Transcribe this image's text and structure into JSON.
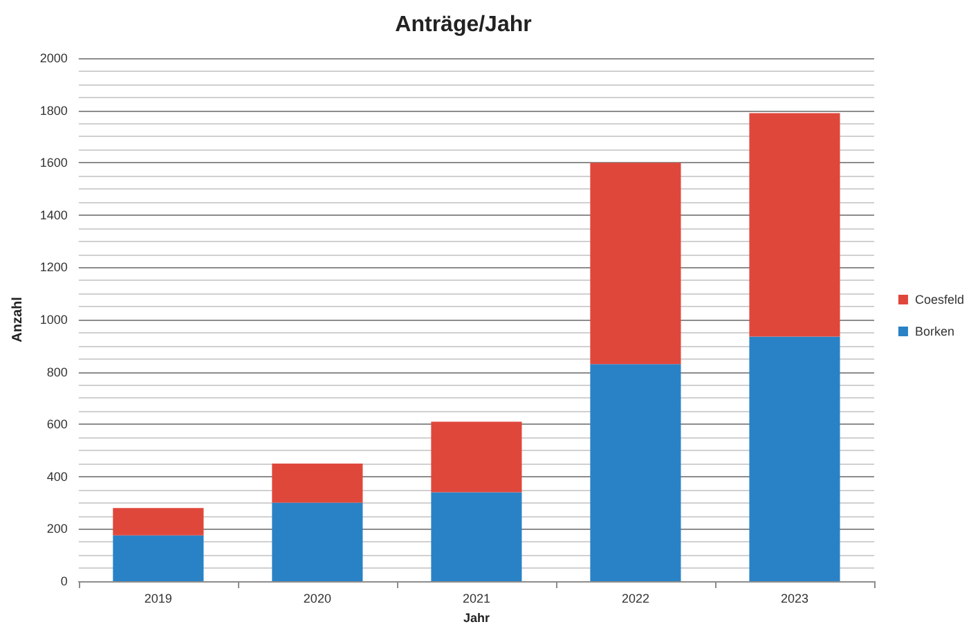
{
  "chart_data": {
    "type": "bar",
    "title": "Anträge/Jahr",
    "xlabel": "Jahr",
    "ylabel": "Anzahl",
    "categories": [
      "2019",
      "2020",
      "2021",
      "2022",
      "2023"
    ],
    "series": [
      {
        "name": "Borken",
        "color": "#2a82c6",
        "values": [
          175,
          300,
          340,
          830,
          935
        ]
      },
      {
        "name": "Coesfeld",
        "color": "#e0473b",
        "values": [
          105,
          150,
          270,
          770,
          855
        ]
      }
    ],
    "stacked": true,
    "ylim": [
      0,
      2000
    ],
    "yticks": [
      0,
      200,
      400,
      600,
      800,
      1000,
      1200,
      1400,
      1600,
      1800,
      2000
    ],
    "grid": "y",
    "legend": "right"
  }
}
